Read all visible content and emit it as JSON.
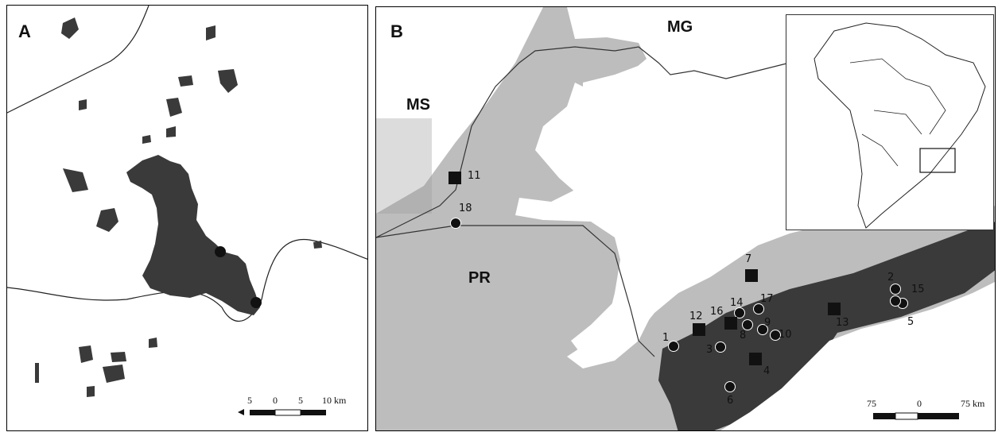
{
  "panel_a": {
    "label": "A",
    "scale": {
      "ticks": [
        "5",
        "0",
        "5",
        "10 km"
      ]
    }
  },
  "panel_b": {
    "label": "B",
    "states": {
      "ms": "MS",
      "mg": "MG",
      "pr": "PR"
    },
    "scale": {
      "ticks": [
        "75",
        "0",
        "75 km"
      ]
    },
    "sites": [
      {
        "id": "1",
        "shape": "circle"
      },
      {
        "id": "2",
        "shape": "circle"
      },
      {
        "id": "3",
        "shape": "circle"
      },
      {
        "id": "4",
        "shape": "square"
      },
      {
        "id": "5",
        "shape": "circle"
      },
      {
        "id": "6",
        "shape": "circle"
      },
      {
        "id": "7",
        "shape": "square"
      },
      {
        "id": "8",
        "shape": "circle"
      },
      {
        "id": "9",
        "shape": "circle"
      },
      {
        "id": "10",
        "shape": "circle"
      },
      {
        "id": "11",
        "shape": "square"
      },
      {
        "id": "12",
        "shape": "square"
      },
      {
        "id": "13",
        "shape": "square"
      },
      {
        "id": "14",
        "shape": "circle"
      },
      {
        "id": "15",
        "shape": "circle"
      },
      {
        "id": "16",
        "shape": "square"
      },
      {
        "id": "17",
        "shape": "circle"
      },
      {
        "id": "18",
        "shape": "circle"
      }
    ]
  },
  "colors": {
    "forest": "#3a3a3a",
    "gray_region": "#bdbdbd",
    "markers": "#111111"
  }
}
